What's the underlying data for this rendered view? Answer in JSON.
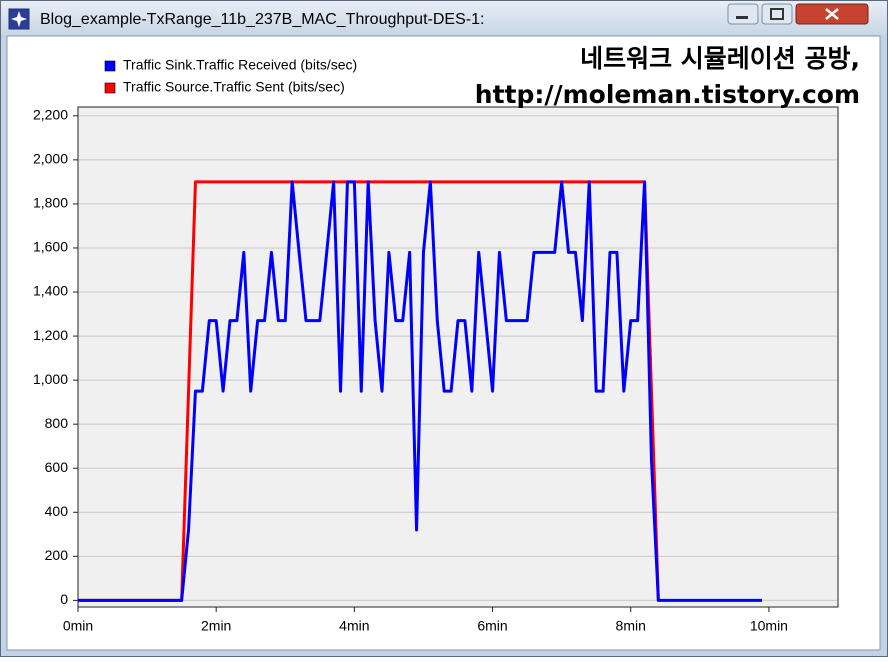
{
  "window_title": "Blog_example-TxRange_11b_237B_MAC_Throughput-DES-1:",
  "watermark": [
    "네트워크 시뮬레이션 공방,",
    "http://moleman.tistory.com"
  ],
  "chart_data": {
    "type": "line",
    "series": [
      {
        "name": "Traffic Sink.Traffic Received (bits/sec)",
        "color": "#0000ff",
        "x": [
          0,
          1.5,
          1.6,
          1.7,
          1.8,
          1.9,
          2.0,
          2.1,
          2.2,
          2.3,
          2.4,
          2.5,
          2.6,
          2.7,
          2.8,
          2.9,
          3.0,
          3.1,
          3.2,
          3.3,
          3.4,
          3.5,
          3.6,
          3.7,
          3.8,
          3.9,
          4.0,
          4.1,
          4.2,
          4.3,
          4.4,
          4.5,
          4.6,
          4.7,
          4.8,
          4.9,
          5.0,
          5.1,
          5.2,
          5.3,
          5.4,
          5.5,
          5.6,
          5.7,
          5.8,
          5.9,
          6.0,
          6.1,
          6.2,
          6.3,
          6.4,
          6.5,
          6.6,
          6.7,
          6.8,
          6.9,
          7.0,
          7.1,
          7.2,
          7.3,
          7.4,
          7.5,
          7.6,
          7.7,
          7.8,
          7.9,
          8.0,
          8.1,
          8.2,
          8.3,
          8.4,
          9.9
        ],
        "values": [
          0,
          0,
          320,
          950,
          950,
          1270,
          1270,
          950,
          1270,
          1270,
          1580,
          950,
          1270,
          1270,
          1580,
          1270,
          1270,
          1900,
          1580,
          1270,
          1270,
          1270,
          1580,
          1900,
          950,
          1900,
          1900,
          950,
          1900,
          1270,
          950,
          1580,
          1270,
          1270,
          1580,
          320,
          1580,
          1900,
          1270,
          950,
          950,
          1270,
          1270,
          950,
          1580,
          1270,
          950,
          1580,
          1270,
          1270,
          1270,
          1270,
          1580,
          1580,
          1580,
          1580,
          1900,
          1580,
          1580,
          1270,
          1900,
          950,
          950,
          1580,
          1580,
          950,
          1270,
          1270,
          1900,
          640,
          0,
          0
        ]
      },
      {
        "name": "Traffic Source.Traffic Sent (bits/sec)",
        "color": "#ff0000",
        "x": [
          0,
          1.5,
          1.7,
          8.2,
          8.4
        ],
        "values": [
          0,
          0,
          1900,
          1900,
          0
        ]
      }
    ],
    "xlim": [
      0,
      11
    ],
    "ylim": [
      -30,
      2240
    ],
    "xticks": [
      {
        "value": 0,
        "label": "0min"
      },
      {
        "value": 2,
        "label": "2min"
      },
      {
        "value": 4,
        "label": "4min"
      },
      {
        "value": 6,
        "label": "6min"
      },
      {
        "value": 8,
        "label": "8min"
      },
      {
        "value": 10,
        "label": "10min"
      }
    ],
    "yticks": [
      0,
      200,
      400,
      600,
      800,
      {
        "value": 1000,
        "label": "1,000"
      },
      {
        "value": 1200,
        "label": "1,200"
      },
      {
        "value": 1400,
        "label": "1,400"
      },
      {
        "value": 1600,
        "label": "1,600"
      },
      {
        "value": 1800,
        "label": "1,800"
      },
      {
        "value": 2000,
        "label": "2,000"
      },
      {
        "value": 2200,
        "label": "2,200"
      }
    ],
    "grid": true,
    "legend": "top-left"
  }
}
